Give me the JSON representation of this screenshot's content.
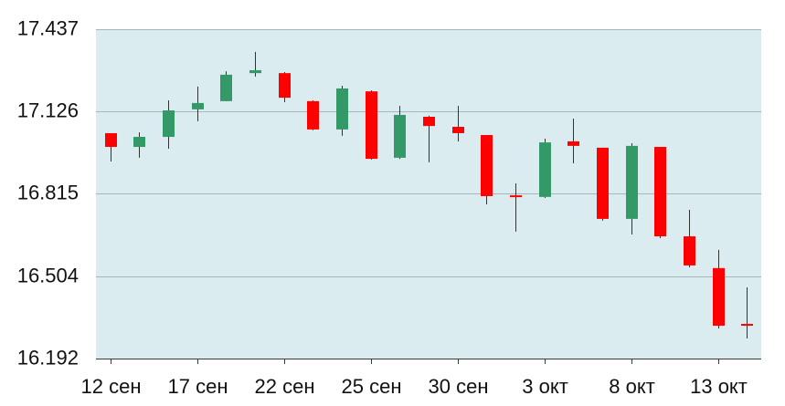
{
  "chart_data": {
    "type": "candlestick",
    "y_ticks": [
      "17.437",
      "17.126",
      "16.815",
      "16.504",
      "16.192"
    ],
    "ylim": [
      16.192,
      17.437
    ],
    "grid": true,
    "categories": [
      "12 сен",
      "",
      "",
      "17 сен",
      "",
      "",
      "22 сен",
      "",
      "",
      "25 сен",
      "",
      "",
      "30 сен",
      "",
      "",
      "3 окт",
      "",
      "",
      "8 окт",
      "",
      "",
      "13 окт",
      ""
    ],
    "candles": [
      {
        "open": 17.044,
        "high": 17.044,
        "low": 16.937,
        "close": 16.992
      },
      {
        "open": 16.992,
        "high": 17.047,
        "low": 16.951,
        "close": 17.03
      },
      {
        "open": 17.03,
        "high": 17.168,
        "low": 16.985,
        "close": 17.13
      },
      {
        "open": 17.134,
        "high": 17.22,
        "low": 17.089,
        "close": 17.158
      },
      {
        "open": 17.165,
        "high": 17.278,
        "low": 17.165,
        "close": 17.265
      },
      {
        "open": 17.271,
        "high": 17.351,
        "low": 17.258,
        "close": 17.282
      },
      {
        "open": 17.271,
        "high": 17.275,
        "low": 17.161,
        "close": 17.178
      },
      {
        "open": 17.165,
        "high": 17.168,
        "low": 17.055,
        "close": 17.058
      },
      {
        "open": 17.058,
        "high": 17.223,
        "low": 17.034,
        "close": 17.213
      },
      {
        "open": 17.202,
        "high": 17.206,
        "low": 16.944,
        "close": 16.947
      },
      {
        "open": 16.951,
        "high": 17.147,
        "low": 16.947,
        "close": 17.113
      },
      {
        "open": 17.106,
        "high": 17.11,
        "low": 16.934,
        "close": 17.071
      },
      {
        "open": 17.068,
        "high": 17.147,
        "low": 17.013,
        "close": 17.044
      },
      {
        "open": 17.037,
        "high": 17.037,
        "low": 16.775,
        "close": 16.806
      },
      {
        "open": 16.809,
        "high": 16.854,
        "low": 16.672,
        "close": 16.803
      },
      {
        "open": 16.803,
        "high": 17.023,
        "low": 16.799,
        "close": 17.009
      },
      {
        "open": 17.013,
        "high": 17.099,
        "low": 16.93,
        "close": 16.996
      },
      {
        "open": 16.989,
        "high": 16.989,
        "low": 16.713,
        "close": 16.72
      },
      {
        "open": 16.72,
        "high": 17.006,
        "low": 16.661,
        "close": 16.996
      },
      {
        "open": 16.992,
        "high": 16.992,
        "low": 16.647,
        "close": 16.654
      },
      {
        "open": 16.654,
        "high": 16.754,
        "low": 16.537,
        "close": 16.544
      },
      {
        "open": 16.534,
        "high": 16.603,
        "low": 16.306,
        "close": 16.316
      },
      {
        "open": 16.323,
        "high": 16.461,
        "low": 16.268,
        "close": 16.316
      }
    ],
    "colors": {
      "up": "#339966",
      "down": "#ff0000",
      "plot_background": "#dbecf1",
      "grid": "#a7b6bc",
      "wick": "#333333",
      "axis": "#3a3a3a"
    }
  }
}
